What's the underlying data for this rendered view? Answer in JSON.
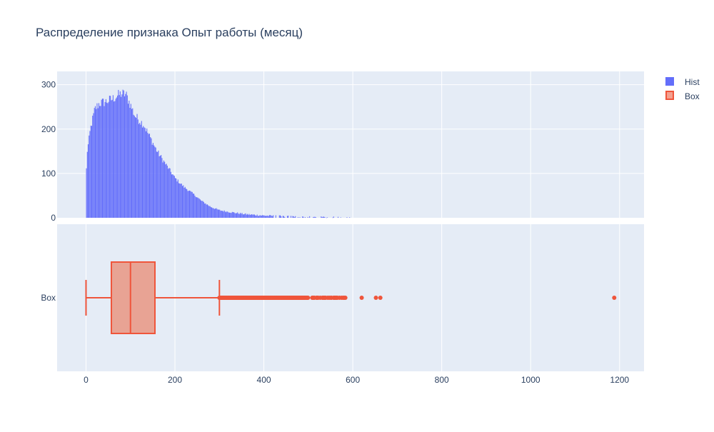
{
  "chart_data": {
    "type": "histogram+box",
    "title": "Распределение признака Опыт работы (месяц)",
    "xlabel": "",
    "ylabel": "",
    "xlim": [
      -65,
      1255
    ],
    "x_ticks": [
      0,
      200,
      400,
      600,
      800,
      1000,
      1200
    ],
    "x_tick_labels": [
      "0",
      "200",
      "400",
      "600",
      "800",
      "1000",
      "1200"
    ],
    "grid": true,
    "legend_position": "top-right",
    "colors": {
      "hist": "#636efa",
      "box_line": "#ef553b",
      "box_fill": "#e8a394",
      "plot_bg": "#e5ecf6",
      "grid": "#ffffff",
      "text": "#2a3f5f"
    },
    "legend": [
      {
        "name": "Hist",
        "marker": "square",
        "color": "#636efa"
      },
      {
        "name": "Box",
        "marker": "square-outline",
        "color": "#ef553b"
      }
    ],
    "histogram": {
      "name": "Hist",
      "y_ticks": [
        0,
        100,
        200,
        300
      ],
      "y_tick_labels": [
        "0",
        "100",
        "200",
        "300"
      ],
      "ylim": [
        0,
        330
      ],
      "bin_width": 2,
      "x_start": 0,
      "x_end": 600,
      "peak_x": 85,
      "peak_count": 285,
      "profile": [
        [
          0,
          75
        ],
        [
          2,
          145
        ],
        [
          6,
          170
        ],
        [
          10,
          200
        ],
        [
          20,
          245
        ],
        [
          30,
          258
        ],
        [
          45,
          262
        ],
        [
          60,
          268
        ],
        [
          70,
          275
        ],
        [
          80,
          280
        ],
        [
          90,
          278
        ],
        [
          100,
          255
        ],
        [
          110,
          230
        ],
        [
          120,
          220
        ],
        [
          130,
          210
        ],
        [
          140,
          190
        ],
        [
          150,
          170
        ],
        [
          160,
          150
        ],
        [
          180,
          120
        ],
        [
          200,
          90
        ],
        [
          220,
          70
        ],
        [
          240,
          55
        ],
        [
          260,
          38
        ],
        [
          280,
          25
        ],
        [
          300,
          17
        ],
        [
          330,
          12
        ],
        [
          360,
          8
        ],
        [
          400,
          5
        ],
        [
          450,
          3
        ],
        [
          500,
          1.5
        ],
        [
          560,
          0.8
        ],
        [
          600,
          0.3
        ]
      ]
    },
    "box": {
      "name": "Box",
      "category": "Box",
      "min": 0,
      "q1": 57,
      "median": 100,
      "q3": 155,
      "upper_fence": 300,
      "outliers_dense_range": [
        300,
        585
      ],
      "outliers": [
        620,
        652,
        662,
        1188
      ]
    }
  }
}
